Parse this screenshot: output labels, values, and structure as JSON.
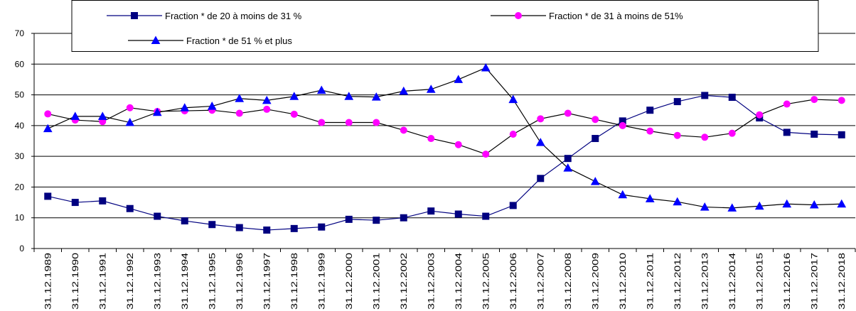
{
  "chart_data": {
    "type": "line",
    "categories": [
      "31.12.1989",
      "31.12.1990",
      "31.12.1991",
      "31.12.1992",
      "31.12.1993",
      "31.12.1994",
      "31.12.1995",
      "31.12.1996",
      "31.12.1997",
      "31.12.1998",
      "31.12.1999",
      "31.12.2000",
      "31.12.2001",
      "31.12.2002",
      "31.12.2003",
      "31.12.2004",
      "31.12.2005",
      "31.12.2006",
      "31.12.2007",
      "31.12.2008",
      "31.12.2009",
      "31.12.2010",
      "31.12.2011",
      "31.12.2012",
      "31.12.2013",
      "31.12.2014",
      "31.12.2015",
      "31.12.2016",
      "31.12.2017",
      "31.12.2018"
    ],
    "series": [
      {
        "name": "Fraction * de 20 à moins de 31 %",
        "color": "#000080",
        "line_color": "#000080",
        "marker": "square",
        "values": [
          17,
          15,
          15.5,
          13,
          10.5,
          9,
          7.8,
          6.8,
          6,
          6.5,
          7,
          9.5,
          9.2,
          10,
          12.2,
          11.2,
          10.5,
          14,
          22.8,
          29.3,
          35.8,
          41.5,
          45,
          47.8,
          49.8,
          49.2,
          42.5,
          37.8,
          37.2,
          37
        ]
      },
      {
        "name": "Fraction * de 31 à moins de 51%",
        "color": "#ff00ff",
        "line_color": "#000000",
        "marker": "circle",
        "values": [
          43.8,
          41.8,
          41.3,
          45.8,
          44.6,
          44.8,
          45,
          44,
          45.3,
          43.7,
          41,
          41,
          41,
          38.5,
          35.8,
          33.8,
          30.7,
          37.2,
          42.2,
          44,
          42,
          40,
          38.2,
          36.8,
          36.2,
          37.5,
          43.5,
          47,
          48.5,
          48.2
        ]
      },
      {
        "name": "Fraction * de 51 % et plus",
        "color": "#0000ff",
        "line_color": "#000000",
        "marker": "triangle",
        "values": [
          39,
          43,
          43,
          41,
          44.3,
          45.8,
          46.3,
          48.8,
          48.2,
          49.5,
          51.5,
          49.5,
          49.3,
          51.2,
          51.8,
          55,
          58.8,
          48.5,
          34.5,
          26.2,
          21.8,
          17.5,
          16.2,
          15.2,
          13.5,
          13.2,
          13.8,
          14.5,
          14.2,
          14.5
        ]
      }
    ],
    "ylim": [
      0,
      70
    ],
    "yticks": [
      0,
      10,
      20,
      30,
      40,
      50,
      60,
      70
    ],
    "grid": true
  }
}
